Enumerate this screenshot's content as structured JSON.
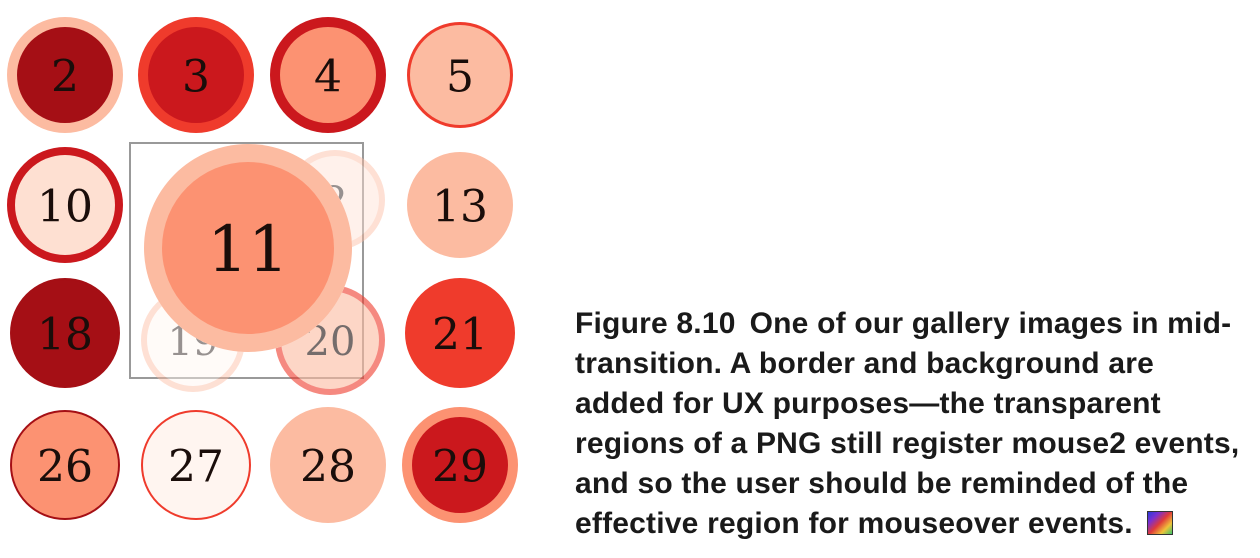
{
  "gallery": {
    "circles": [
      {
        "label": "2",
        "fill": "#a50f15",
        "ring": "#fcbba1"
      },
      {
        "label": "3",
        "fill": "#cb181d",
        "ring": "#ef3b2c"
      },
      {
        "label": "4",
        "fill": "#fc9272",
        "ring": "#cb181d"
      },
      {
        "label": "5",
        "fill": "#fcbba1",
        "ring": "#ef3b2c"
      },
      {
        "label": "10",
        "fill": "#fee0d2",
        "ring": "#cb181d"
      },
      {
        "label": "13",
        "fill": "#fcbba1",
        "ring": "#fcbba1"
      },
      {
        "label": "18",
        "fill": "#a50f15",
        "ring": "#a50f15"
      },
      {
        "label": "21",
        "fill": "#ef3b2c",
        "ring": "#ef3b2c"
      },
      {
        "label": "26",
        "fill": "#fc9272",
        "ring": "#a50f15"
      },
      {
        "label": "27",
        "fill": "#fff5f0",
        "ring": "#ef3b2c"
      },
      {
        "label": "28",
        "fill": "#fcbba1",
        "ring": "#fcbba1"
      },
      {
        "label": "29",
        "fill": "#cb181d",
        "ring": "#fc9272"
      }
    ],
    "ghosts": [
      {
        "label": "2",
        "fill": "#fee0d2",
        "ring": "#fcbba1"
      },
      {
        "label": "19",
        "fill": "#fff5f0",
        "ring": "#fcbba1"
      },
      {
        "label": "20",
        "fill": "#fcbba1",
        "ring": "#ef3b2c"
      }
    ],
    "highlight": {
      "label": "11",
      "fill": "#fc9272",
      "ring": "#fcbba1",
      "border": "#999999"
    }
  },
  "caption": {
    "figure_number": "Figure 8.10",
    "text": "One of our gallery images in mid-transition. A border and background are added for UX purposes—the transparent regions of a PNG still register mouse2 events, and so the user should be reminded of the effective region for mouseover events.",
    "icon": "rgb-color-icon"
  }
}
